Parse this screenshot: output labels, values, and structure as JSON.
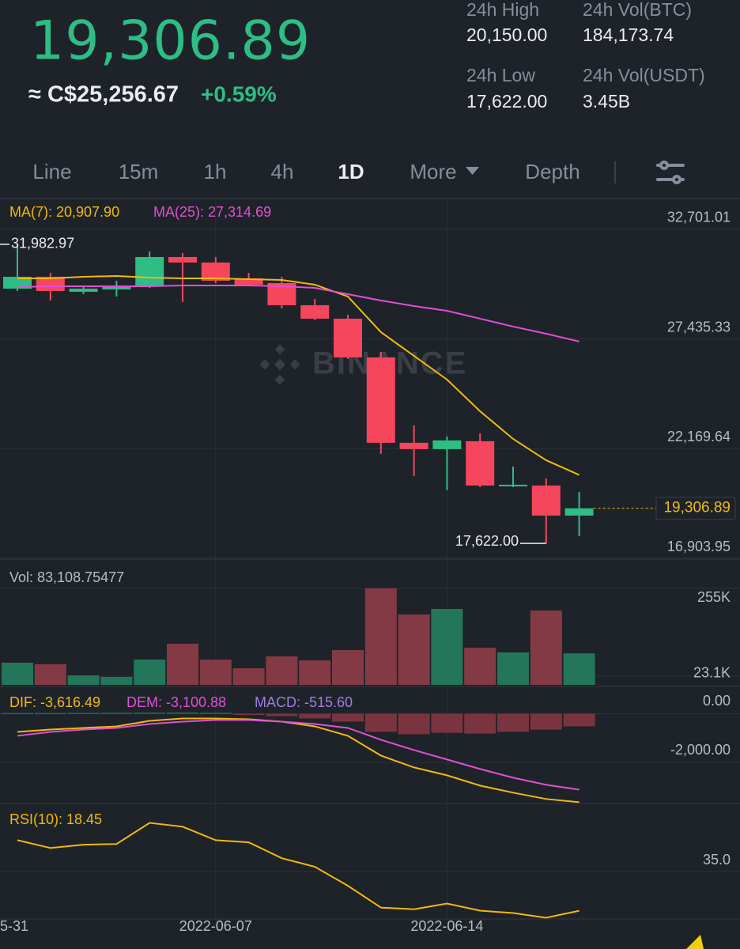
{
  "header": {
    "price": "19,306.89",
    "fiat": "≈ C$25,256.67",
    "change": "+0.59%",
    "stats": [
      {
        "label": "24h High",
        "value": "20,150.00"
      },
      {
        "label": "24h Vol(BTC)",
        "value": "184,173.74"
      },
      {
        "label": "24h Low",
        "value": "17,622.00"
      },
      {
        "label": "24h Vol(USDT)",
        "value": "3.45B"
      }
    ]
  },
  "tabs": [
    "Line",
    "15m",
    "1h",
    "4h",
    "1D",
    "More",
    "Depth"
  ],
  "chart_data": [
    {
      "type": "candlestick",
      "watermark": "BINANCE",
      "up_color": "#2ebd85",
      "down_color": "#f6465d",
      "open": [
        29854,
        30424,
        29703,
        29816,
        29968,
        31373,
        31107,
        30348,
        30120,
        29057,
        28412,
        26552,
        22452,
        22148,
        22528,
        20361,
        20399,
        18956
      ],
      "high": [
        31982.97,
        30614,
        29968,
        30234,
        31639,
        31563,
        31373,
        30614,
        30424,
        29361,
        28602,
        26818,
        23288,
        22756,
        22908,
        21310,
        20740,
        20095
      ],
      "low": [
        29741,
        29285,
        29589,
        29475,
        29892,
        29209,
        30120,
        29968,
        28905,
        28336,
        26480,
        21921,
        20858,
        20175,
        20323,
        20323,
        17622,
        17968
      ],
      "close": [
        30424,
        29741,
        29854,
        29968,
        31373,
        31107,
        30234,
        30044,
        29057,
        28412,
        26552,
        22452,
        22148,
        22566,
        20399,
        20437,
        18956,
        19306.89
      ],
      "lines": [
        {
          "label": "MA(7): 20,907.90",
          "color": "#f0b90b",
          "values": [
            30348,
            30348,
            30424,
            30462,
            30386,
            30348,
            30348,
            30310,
            30272,
            30044,
            29474,
            27765,
            26626,
            25487,
            23968,
            22639,
            21614,
            20907.9
          ]
        },
        {
          "label": "MA(25): 27,314.69",
          "color": "#e04fd4",
          "values": [
            29930,
            29968,
            29968,
            29968,
            29968,
            30006,
            30006,
            30006,
            29968,
            29892,
            29588,
            29284,
            29018,
            28790,
            28412,
            28032,
            27689,
            27314.69
          ]
        }
      ],
      "max_label": "31,982.97",
      "min_label": "17,622.00",
      "last_label": "19,306.89",
      "ylim": [
        16866,
        33726
      ],
      "yticks": [
        {
          "value": 32701.01,
          "label": "32,701.01"
        },
        {
          "value": 27435.33,
          "label": "27,435.33"
        },
        {
          "value": 22169.64,
          "label": "22,169.64"
        },
        {
          "value": 16903.95,
          "label": "16,903.95"
        }
      ],
      "grid": true
    },
    {
      "type": "bar",
      "label": "Vol: 83,108.75477",
      "up_color": "#24765a",
      "down_color": "#843a45",
      "values": [
        58520,
        54340,
        25080,
        20900,
        66880,
        108680,
        66880,
        43890,
        75240,
        64790,
        91960,
        255000,
        186010,
        200640,
        98230,
        85690,
        196460,
        83108.75477
      ],
      "ylim": [
        0,
        255000
      ],
      "yticks": [
        {
          "value": 255000,
          "label": "255K"
        },
        {
          "value": 23100,
          "label": "23.1K"
        }
      ]
    },
    {
      "type": "macd",
      "up_color": "#1f6e50",
      "down_color": "#7a3440",
      "histogram": {
        "label": "MACD: -515.60",
        "color": "#a07be0",
        "values": [
          30,
          30,
          35,
          40,
          45,
          50,
          40,
          -40,
          -100,
          -190,
          -320,
          -740,
          -840,
          -780,
          -810,
          -740,
          -650,
          -515.6
        ]
      },
      "lines": [
        {
          "label": "DIF: -3,616.49",
          "color": "#f0b90b",
          "values": [
            -742,
            -645,
            -581,
            -516,
            -290,
            -194,
            -194,
            -226,
            -323,
            -516,
            -903,
            -1710,
            -2194,
            -2516,
            -2936,
            -3226,
            -3484,
            -3616.49
          ]
        },
        {
          "label": "DEM: -3,100.88",
          "color": "#e04fd4",
          "values": [
            -903,
            -742,
            -645,
            -581,
            -419,
            -323,
            -258,
            -258,
            -323,
            -419,
            -581,
            -1065,
            -1484,
            -1871,
            -2258,
            -2613,
            -2903,
            -3100.88
          ]
        }
      ],
      "ylim": [
        -3700,
        1050
      ],
      "yticks": [
        {
          "value": 0,
          "label": "0.00"
        },
        {
          "value": -2000,
          "label": "-2,000.00"
        }
      ]
    },
    {
      "type": "line",
      "series": [
        {
          "label": "RSI(10): 18.45",
          "color": "#f0b90b",
          "values": [
            48.2,
            44.9,
            46.3,
            46.6,
            55.5,
            53.9,
            48.2,
            47.3,
            40.6,
            37.0,
            29.0,
            19.8,
            19.1,
            21.5,
            18.5,
            17.5,
            15.5,
            18.45
          ]
        }
      ],
      "categories": [
        "5-31",
        null,
        null,
        null,
        null,
        null,
        "2022-06-07",
        null,
        null,
        null,
        null,
        null,
        null,
        "2022-06-14",
        null,
        null,
        null,
        null
      ],
      "ylim": [
        15,
        63
      ],
      "yticks": [
        {
          "value": 35,
          "label": "35.0"
        }
      ]
    }
  ]
}
